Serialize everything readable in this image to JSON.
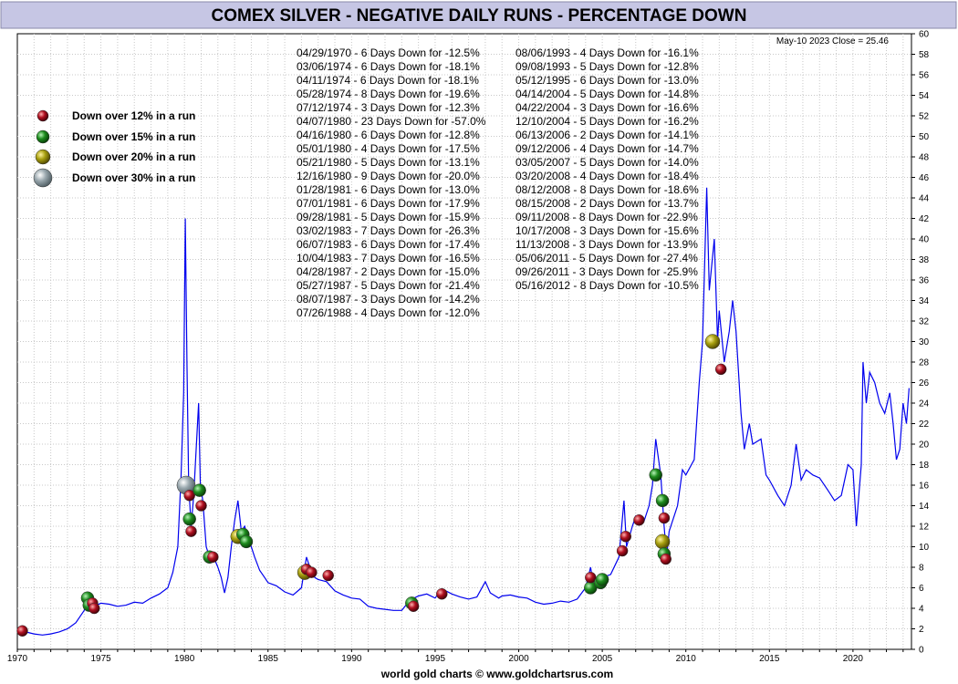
{
  "chart_data": {
    "type": "line",
    "title": "COMEX SILVER - NEGATIVE DAILY RUNS - PERCENTAGE DOWN",
    "latest": "May-10  2023   Close = 25.46",
    "footer": "world gold charts © www.goldchartsrus.com",
    "xlabel": "",
    "ylabel": "",
    "xlim": [
      1970,
      2023.5
    ],
    "ylim": [
      0,
      60
    ],
    "x_ticks": [
      1970,
      1975,
      1980,
      1985,
      1990,
      1995,
      2000,
      2005,
      2010,
      2015,
      2020
    ],
    "x_tick_labels": [
      "1970",
      "1975",
      "1980",
      "1985",
      "1990",
      "1995",
      "2000",
      "2005",
      "2010",
      "2015",
      "2020"
    ],
    "y_ticks": [
      0,
      2,
      4,
      6,
      8,
      10,
      12,
      14,
      16,
      18,
      20,
      22,
      24,
      26,
      28,
      30,
      32,
      34,
      36,
      38,
      40,
      42,
      44,
      46,
      48,
      50,
      52,
      54,
      56,
      58,
      60
    ],
    "y_tick_labels": [
      "0",
      "2",
      "4",
      "6",
      "8",
      "10",
      "12",
      "14",
      "16",
      "18",
      "20",
      "22",
      "24",
      "26",
      "28",
      "30",
      "32",
      "34",
      "36",
      "38",
      "40",
      "42",
      "44",
      "46",
      "48",
      "50",
      "52",
      "54",
      "56",
      "58",
      "60"
    ],
    "grid": true,
    "colors": {
      "line": "#0000ee",
      "grid": "#c8c8c8",
      "title_bg": "#c6c6e4",
      "red": "#b01020",
      "green": "#1e8c1e",
      "olive": "#a8a010",
      "gray": "#9aa8ae"
    },
    "series": [
      {
        "values": [
          [
            1970.0,
            1.8
          ],
          [
            1970.5,
            1.7
          ],
          [
            1971.0,
            1.5
          ],
          [
            1971.5,
            1.4
          ],
          [
            1972.0,
            1.5
          ],
          [
            1972.5,
            1.7
          ],
          [
            1973.0,
            2.0
          ],
          [
            1973.5,
            2.6
          ],
          [
            1974.0,
            3.8
          ],
          [
            1974.2,
            5.5
          ],
          [
            1974.4,
            4.4
          ],
          [
            1974.6,
            4.2
          ],
          [
            1975.0,
            4.5
          ],
          [
            1975.5,
            4.4
          ],
          [
            1976.0,
            4.2
          ],
          [
            1976.5,
            4.3
          ],
          [
            1977.0,
            4.6
          ],
          [
            1977.5,
            4.5
          ],
          [
            1978.0,
            5.0
          ],
          [
            1978.5,
            5.4
          ],
          [
            1979.0,
            6.0
          ],
          [
            1979.3,
            7.5
          ],
          [
            1979.6,
            10.0
          ],
          [
            1979.8,
            17.0
          ],
          [
            1979.95,
            25.0
          ],
          [
            1980.05,
            42.0
          ],
          [
            1980.15,
            28.0
          ],
          [
            1980.25,
            16.0
          ],
          [
            1980.4,
            12.0
          ],
          [
            1980.55,
            15.0
          ],
          [
            1980.75,
            21.0
          ],
          [
            1980.85,
            24.0
          ],
          [
            1980.95,
            16.0
          ],
          [
            1981.1,
            14.5
          ],
          [
            1981.3,
            10.0
          ],
          [
            1981.5,
            9.0
          ],
          [
            1981.8,
            8.8
          ],
          [
            1982.0,
            8.0
          ],
          [
            1982.2,
            7.0
          ],
          [
            1982.4,
            5.5
          ],
          [
            1982.6,
            7.0
          ],
          [
            1982.8,
            10.0
          ],
          [
            1983.0,
            12.5
          ],
          [
            1983.2,
            14.5
          ],
          [
            1983.4,
            11.5
          ],
          [
            1983.6,
            12.0
          ],
          [
            1983.9,
            10.5
          ],
          [
            1984.2,
            9.0
          ],
          [
            1984.5,
            7.7
          ],
          [
            1984.8,
            7.0
          ],
          [
            1985.0,
            6.5
          ],
          [
            1985.5,
            6.2
          ],
          [
            1986.0,
            5.6
          ],
          [
            1986.5,
            5.3
          ],
          [
            1987.0,
            6.0
          ],
          [
            1987.3,
            9.0
          ],
          [
            1987.5,
            8.0
          ],
          [
            1987.8,
            7.0
          ],
          [
            1988.0,
            6.8
          ],
          [
            1988.5,
            6.6
          ],
          [
            1989.0,
            5.7
          ],
          [
            1989.5,
            5.3
          ],
          [
            1990.0,
            5.0
          ],
          [
            1990.5,
            4.9
          ],
          [
            1991.0,
            4.2
          ],
          [
            1991.5,
            4.0
          ],
          [
            1992.0,
            3.9
          ],
          [
            1992.5,
            3.8
          ],
          [
            1993.0,
            3.8
          ],
          [
            1993.5,
            4.8
          ],
          [
            1994.0,
            5.2
          ],
          [
            1994.5,
            5.4
          ],
          [
            1995.0,
            5.0
          ],
          [
            1995.4,
            5.9
          ],
          [
            1996.0,
            5.4
          ],
          [
            1996.5,
            5.1
          ],
          [
            1997.0,
            4.9
          ],
          [
            1997.5,
            5.1
          ],
          [
            1998.0,
            6.6
          ],
          [
            1998.3,
            5.5
          ],
          [
            1998.8,
            5.0
          ],
          [
            1999.0,
            5.2
          ],
          [
            1999.5,
            5.3
          ],
          [
            2000.0,
            5.1
          ],
          [
            2000.5,
            5.0
          ],
          [
            2001.0,
            4.6
          ],
          [
            2001.5,
            4.4
          ],
          [
            2002.0,
            4.5
          ],
          [
            2002.5,
            4.7
          ],
          [
            2003.0,
            4.6
          ],
          [
            2003.5,
            4.9
          ],
          [
            2004.0,
            6.0
          ],
          [
            2004.3,
            8.0
          ],
          [
            2004.5,
            6.0
          ],
          [
            2004.9,
            7.2
          ],
          [
            2005.0,
            7.0
          ],
          [
            2005.5,
            7.3
          ],
          [
            2006.0,
            9.0
          ],
          [
            2006.3,
            14.5
          ],
          [
            2006.45,
            10.0
          ],
          [
            2006.8,
            12.0
          ],
          [
            2007.0,
            13.0
          ],
          [
            2007.5,
            12.5
          ],
          [
            2007.8,
            14.0
          ],
          [
            2008.0,
            16.0
          ],
          [
            2008.2,
            20.5
          ],
          [
            2008.5,
            17.0
          ],
          [
            2008.7,
            12.0
          ],
          [
            2008.85,
            9.0
          ],
          [
            2009.0,
            11.5
          ],
          [
            2009.5,
            14.0
          ],
          [
            2009.8,
            17.5
          ],
          [
            2010.0,
            17.0
          ],
          [
            2010.5,
            18.5
          ],
          [
            2010.8,
            26.0
          ],
          [
            2011.0,
            30.0
          ],
          [
            2011.25,
            45.0
          ],
          [
            2011.4,
            35.0
          ],
          [
            2011.7,
            40.0
          ],
          [
            2011.9,
            30.0
          ],
          [
            2012.0,
            33.0
          ],
          [
            2012.3,
            28.0
          ],
          [
            2012.6,
            31.0
          ],
          [
            2012.8,
            34.0
          ],
          [
            2013.0,
            31.0
          ],
          [
            2013.3,
            23.0
          ],
          [
            2013.5,
            19.5
          ],
          [
            2013.8,
            22.0
          ],
          [
            2014.0,
            20.0
          ],
          [
            2014.5,
            20.5
          ],
          [
            2014.8,
            17.0
          ],
          [
            2015.0,
            16.5
          ],
          [
            2015.5,
            15.0
          ],
          [
            2015.9,
            14.0
          ],
          [
            2016.3,
            16.0
          ],
          [
            2016.6,
            20.0
          ],
          [
            2016.9,
            16.5
          ],
          [
            2017.2,
            17.5
          ],
          [
            2017.6,
            17.0
          ],
          [
            2018.0,
            16.7
          ],
          [
            2018.5,
            15.5
          ],
          [
            2018.9,
            14.5
          ],
          [
            2019.3,
            15.0
          ],
          [
            2019.7,
            18.0
          ],
          [
            2020.0,
            17.5
          ],
          [
            2020.2,
            12.0
          ],
          [
            2020.5,
            18.0
          ],
          [
            2020.6,
            28.0
          ],
          [
            2020.8,
            24.0
          ],
          [
            2021.0,
            27.0
          ],
          [
            2021.3,
            26.0
          ],
          [
            2021.6,
            24.0
          ],
          [
            2021.9,
            23.0
          ],
          [
            2022.2,
            25.0
          ],
          [
            2022.4,
            22.0
          ],
          [
            2022.6,
            18.5
          ],
          [
            2022.8,
            19.5
          ],
          [
            2023.0,
            24.0
          ],
          [
            2023.2,
            22.0
          ],
          [
            2023.36,
            25.46
          ]
        ]
      }
    ],
    "legend": [
      {
        "label": "Down over 12% in a run",
        "color": "red",
        "size": 6
      },
      {
        "label": "Down over 15% in a run",
        "color": "green",
        "size": 7
      },
      {
        "label": "Down over 20% in a run",
        "color": "olive",
        "size": 8
      },
      {
        "label": "Down over 30% in a run",
        "color": "gray",
        "size": 10
      }
    ],
    "markers": [
      {
        "x": 1970.3,
        "y": 1.8,
        "color": "red",
        "size": 6
      },
      {
        "x": 1974.2,
        "y": 5.0,
        "color": "green",
        "size": 7
      },
      {
        "x": 1974.3,
        "y": 4.3,
        "color": "green",
        "size": 7
      },
      {
        "x": 1974.5,
        "y": 4.5,
        "color": "red",
        "size": 6
      },
      {
        "x": 1974.6,
        "y": 4.0,
        "color": "red",
        "size": 6
      },
      {
        "x": 1980.1,
        "y": 16.0,
        "color": "gray",
        "size": 10
      },
      {
        "x": 1980.3,
        "y": 15.0,
        "color": "red",
        "size": 6
      },
      {
        "x": 1980.3,
        "y": 12.7,
        "color": "green",
        "size": 7
      },
      {
        "x": 1980.4,
        "y": 11.5,
        "color": "red",
        "size": 6
      },
      {
        "x": 1980.9,
        "y": 15.5,
        "color": "green",
        "size": 7
      },
      {
        "x": 1981.0,
        "y": 14.0,
        "color": "red",
        "size": 6
      },
      {
        "x": 1981.5,
        "y": 9.0,
        "color": "green",
        "size": 7
      },
      {
        "x": 1981.7,
        "y": 9.0,
        "color": "red",
        "size": 6
      },
      {
        "x": 1983.2,
        "y": 11.0,
        "color": "olive",
        "size": 8
      },
      {
        "x": 1983.5,
        "y": 11.2,
        "color": "green",
        "size": 7
      },
      {
        "x": 1983.7,
        "y": 10.5,
        "color": "green",
        "size": 7
      },
      {
        "x": 1987.2,
        "y": 7.5,
        "color": "olive",
        "size": 8
      },
      {
        "x": 1987.3,
        "y": 7.8,
        "color": "red",
        "size": 6
      },
      {
        "x": 1987.6,
        "y": 7.5,
        "color": "red",
        "size": 6
      },
      {
        "x": 1988.6,
        "y": 7.2,
        "color": "red",
        "size": 6
      },
      {
        "x": 1993.6,
        "y": 4.5,
        "color": "green",
        "size": 7
      },
      {
        "x": 1993.7,
        "y": 4.2,
        "color": "red",
        "size": 6
      },
      {
        "x": 1995.4,
        "y": 5.4,
        "color": "red",
        "size": 6
      },
      {
        "x": 2004.3,
        "y": 6.0,
        "color": "green",
        "size": 7
      },
      {
        "x": 2004.3,
        "y": 7.0,
        "color": "red",
        "size": 6
      },
      {
        "x": 2004.9,
        "y": 6.5,
        "color": "green",
        "size": 7
      },
      {
        "x": 2005.0,
        "y": 6.8,
        "color": "green",
        "size": 7
      },
      {
        "x": 2006.2,
        "y": 9.6,
        "color": "red",
        "size": 6
      },
      {
        "x": 2006.4,
        "y": 11.0,
        "color": "red",
        "size": 6
      },
      {
        "x": 2007.2,
        "y": 12.6,
        "color": "red",
        "size": 6
      },
      {
        "x": 2008.2,
        "y": 17.0,
        "color": "green",
        "size": 7
      },
      {
        "x": 2008.6,
        "y": 14.5,
        "color": "green",
        "size": 7
      },
      {
        "x": 2008.7,
        "y": 12.8,
        "color": "red",
        "size": 6
      },
      {
        "x": 2008.6,
        "y": 10.5,
        "color": "olive",
        "size": 8
      },
      {
        "x": 2008.7,
        "y": 9.3,
        "color": "green",
        "size": 7
      },
      {
        "x": 2008.8,
        "y": 8.8,
        "color": "red",
        "size": 6
      },
      {
        "x": 2011.6,
        "y": 30.0,
        "color": "olive",
        "size": 8
      },
      {
        "x": 2012.1,
        "y": 27.3,
        "color": "red",
        "size": 6
      }
    ],
    "annotations_col1": [
      "04/29/1970 - 6 Days Down for -12.5%",
      "03/06/1974 - 6 Days Down for -18.1%",
      "04/11/1974 - 6 Days Down for -18.1%",
      "05/28/1974 - 8 Days Down for -19.6%",
      "07/12/1974 - 3 Days Down for -12.3%",
      "04/07/1980 - 23 Days Down for -57.0%",
      "04/16/1980 - 6 Days Down for -12.8%",
      "05/01/1980 - 4 Days Down for -17.5%",
      "05/21/1980 - 5 Days Down for -13.1%",
      "12/16/1980 - 9 Days Down for -20.0%",
      "01/28/1981 - 6 Days Down for -13.0%",
      "07/01/1981 - 6 Days Down for -17.9%",
      "09/28/1981 - 5 Days Down for -15.9%",
      "03/02/1983 - 7 Days Down for -26.3%",
      "06/07/1983 - 6 Days Down for -17.4%",
      "10/04/1983 - 7 Days Down for -16.5%",
      "04/28/1987 - 2 Days Down for -15.0%",
      "05/27/1987 - 5 Days Down for -21.4%",
      "08/07/1987 - 3 Days Down for -14.2%",
      "07/26/1988 - 4 Days Down for -12.0%"
    ],
    "annotations_col2": [
      "08/06/1993 - 4 Days Down for -16.1%",
      "09/08/1993 - 5 Days Down for -12.8%",
      "05/12/1995 - 6 Days Down for -13.0%",
      "04/14/2004 - 5 Days Down for -14.8%",
      "04/22/2004 - 3 Days Down for -16.6%",
      "12/10/2004 - 5 Days Down for -16.2%",
      "06/13/2006 - 2 Days Down for -14.1%",
      "09/12/2006 - 4 Days Down for -14.7%",
      "03/05/2007 - 5 Days Down for -14.0%",
      "03/20/2008 - 4 Days Down for -18.4%",
      "08/12/2008 - 8 Days Down for -18.6%",
      "08/15/2008 - 2 Days Down for -13.7%",
      "09/11/2008 - 8 Days Down for -22.9%",
      "10/17/2008 - 3 Days Down for -15.6%",
      "11/13/2008 - 3 Days Down for -13.9%",
      "05/06/2011 - 5 Days Down for -27.4%",
      "09/26/2011 - 3 Days Down for -25.9%",
      "05/16/2012 - 8 Days Down for -10.5%"
    ]
  }
}
